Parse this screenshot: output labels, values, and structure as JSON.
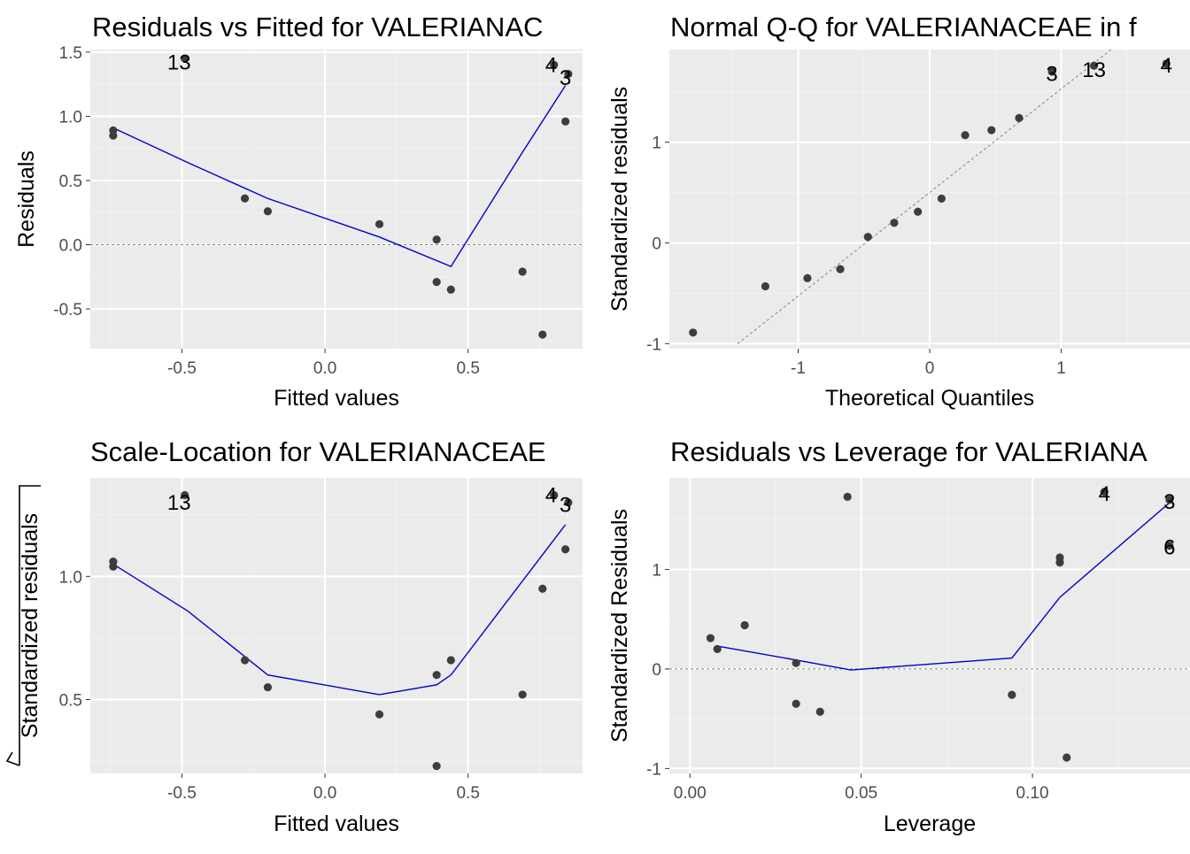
{
  "chart_data": [
    {
      "type": "scatter",
      "title": "Residuals vs Fitted for VALERIANAC",
      "xlabel": "Fitted values",
      "ylabel": "Residuals",
      "xlim": [
        -0.82,
        0.9
      ],
      "ylim": [
        -0.81,
        1.52
      ],
      "xticks": [
        -0.5,
        0.0,
        0.5
      ],
      "xtick_labels": [
        "-0.5",
        "0.0",
        "0.5"
      ],
      "yticks": [
        -0.5,
        0.0,
        0.5,
        1.0,
        1.5
      ],
      "ytick_labels": [
        "-0.5",
        "0.0",
        "0.5",
        "1.0",
        "1.5"
      ],
      "grid": true,
      "hline": 0,
      "points": [
        {
          "x": -0.74,
          "y": 0.89
        },
        {
          "x": -0.74,
          "y": 0.85
        },
        {
          "x": -0.49,
          "y": 1.45
        },
        {
          "x": -0.28,
          "y": 0.36
        },
        {
          "x": -0.2,
          "y": 0.26
        },
        {
          "x": 0.19,
          "y": 0.16
        },
        {
          "x": 0.39,
          "y": 0.04
        },
        {
          "x": 0.39,
          "y": -0.29
        },
        {
          "x": 0.44,
          "y": -0.35
        },
        {
          "x": 0.69,
          "y": -0.21
        },
        {
          "x": 0.76,
          "y": -0.7
        },
        {
          "x": 0.84,
          "y": 0.96
        },
        {
          "x": 0.8,
          "y": 1.4
        },
        {
          "x": 0.85,
          "y": 1.33
        }
      ],
      "smooth": [
        {
          "x": -0.74,
          "y": 0.91
        },
        {
          "x": -0.48,
          "y": 0.64
        },
        {
          "x": -0.2,
          "y": 0.36
        },
        {
          "x": 0.19,
          "y": 0.06
        },
        {
          "x": 0.44,
          "y": -0.17
        },
        {
          "x": 0.69,
          "y": 0.72
        },
        {
          "x": 0.84,
          "y": 1.24
        }
      ],
      "point_labels": [
        {
          "text": "13",
          "x": -0.51,
          "y": 1.42
        },
        {
          "text": "4",
          "x": 0.79,
          "y": 1.4
        },
        {
          "text": "3",
          "x": 0.84,
          "y": 1.3
        }
      ]
    },
    {
      "type": "scatter",
      "title": "Normal Q-Q for VALERIANACEAE in f",
      "xlabel": "Theoretical Quantiles",
      "ylabel": "Standardized residuals",
      "xlim": [
        -1.98,
        1.98
      ],
      "ylim": [
        -1.05,
        1.92
      ],
      "xticks": [
        -1,
        0,
        1
      ],
      "xtick_labels": [
        "-1",
        "0",
        "1"
      ],
      "yticks": [
        -1,
        0,
        1
      ],
      "ytick_labels": [
        "-1",
        "0",
        "1"
      ],
      "grid": true,
      "refline": {
        "x1": -1.46,
        "y1": -1.0,
        "x2": 1.38,
        "y2": 1.92
      },
      "points": [
        {
          "x": -1.8,
          "y": -0.89
        },
        {
          "x": -1.25,
          "y": -0.43
        },
        {
          "x": -0.93,
          "y": -0.35
        },
        {
          "x": -0.68,
          "y": -0.26
        },
        {
          "x": -0.47,
          "y": 0.06
        },
        {
          "x": -0.27,
          "y": 0.2
        },
        {
          "x": -0.09,
          "y": 0.31
        },
        {
          "x": 0.09,
          "y": 0.44
        },
        {
          "x": 0.27,
          "y": 1.07
        },
        {
          "x": 0.47,
          "y": 1.12
        },
        {
          "x": 0.68,
          "y": 1.24
        },
        {
          "x": 0.93,
          "y": 1.7
        },
        {
          "x": 1.25,
          "y": 1.76
        },
        {
          "x": 1.8,
          "y": 1.78
        }
      ],
      "point_labels": [
        {
          "text": "3",
          "x": 0.93,
          "y": 1.68
        },
        {
          "text": "13",
          "x": 1.25,
          "y": 1.72
        },
        {
          "text": "4",
          "x": 1.8,
          "y": 1.76
        }
      ]
    },
    {
      "type": "scatter",
      "title": "Scale-Location for VALERIANACEAE",
      "xlabel": "Fitted values",
      "ylabel": "√Standardized residuals",
      "xlim": [
        -0.82,
        0.9
      ],
      "ylim": [
        0.2,
        1.4
      ],
      "xticks": [
        -0.5,
        0.0,
        0.5
      ],
      "xtick_labels": [
        "-0.5",
        "0.0",
        "0.5"
      ],
      "yticks": [
        0.5,
        1.0
      ],
      "ytick_labels": [
        "0.5",
        "1.0"
      ],
      "grid": true,
      "points": [
        {
          "x": -0.74,
          "y": 1.06
        },
        {
          "x": -0.74,
          "y": 1.04
        },
        {
          "x": -0.49,
          "y": 1.33
        },
        {
          "x": -0.28,
          "y": 0.66
        },
        {
          "x": -0.2,
          "y": 0.55
        },
        {
          "x": 0.19,
          "y": 0.44
        },
        {
          "x": 0.39,
          "y": 0.6
        },
        {
          "x": 0.39,
          "y": 0.23
        },
        {
          "x": 0.44,
          "y": 0.66
        },
        {
          "x": 0.69,
          "y": 0.52
        },
        {
          "x": 0.76,
          "y": 0.95
        },
        {
          "x": 0.84,
          "y": 1.11
        },
        {
          "x": 0.8,
          "y": 1.33
        },
        {
          "x": 0.85,
          "y": 1.3
        }
      ],
      "smooth": [
        {
          "x": -0.74,
          "y": 1.05
        },
        {
          "x": -0.48,
          "y": 0.86
        },
        {
          "x": -0.2,
          "y": 0.6
        },
        {
          "x": 0.19,
          "y": 0.52
        },
        {
          "x": 0.39,
          "y": 0.56
        },
        {
          "x": 0.44,
          "y": 0.6
        },
        {
          "x": 0.84,
          "y": 1.21
        }
      ],
      "point_labels": [
        {
          "text": "13",
          "x": -0.51,
          "y": 1.3
        },
        {
          "text": "4",
          "x": 0.79,
          "y": 1.33
        },
        {
          "text": "3",
          "x": 0.84,
          "y": 1.29
        }
      ]
    },
    {
      "type": "scatter",
      "title": "Residuals vs Leverage for VALERIANA",
      "xlabel": "Leverage",
      "ylabel": "Standardized Residuals",
      "xlim": [
        -0.006,
        0.146
      ],
      "ylim": [
        -1.05,
        1.92
      ],
      "xticks": [
        0.0,
        0.05,
        0.1
      ],
      "xtick_labels": [
        "0.00",
        "0.05",
        "0.10"
      ],
      "yticks": [
        -1,
        0,
        1
      ],
      "ytick_labels": [
        "-1",
        "0",
        "1"
      ],
      "grid": true,
      "hline": 0,
      "points": [
        {
          "x": 0.006,
          "y": 0.31
        },
        {
          "x": 0.008,
          "y": 0.2
        },
        {
          "x": 0.016,
          "y": 0.44
        },
        {
          "x": 0.031,
          "y": 0.06
        },
        {
          "x": 0.031,
          "y": -0.35
        },
        {
          "x": 0.038,
          "y": -0.43
        },
        {
          "x": 0.046,
          "y": 1.73
        },
        {
          "x": 0.094,
          "y": -0.26
        },
        {
          "x": 0.108,
          "y": 1.12
        },
        {
          "x": 0.108,
          "y": 1.07
        },
        {
          "x": 0.11,
          "y": -0.89
        },
        {
          "x": 0.121,
          "y": 1.78
        },
        {
          "x": 0.14,
          "y": 1.7
        },
        {
          "x": 0.14,
          "y": 1.24
        }
      ],
      "smooth": [
        {
          "x": 0.008,
          "y": 0.23
        },
        {
          "x": 0.031,
          "y": 0.09
        },
        {
          "x": 0.047,
          "y": -0.01
        },
        {
          "x": 0.094,
          "y": 0.11
        },
        {
          "x": 0.108,
          "y": 0.72
        },
        {
          "x": 0.14,
          "y": 1.67
        }
      ],
      "point_labels": [
        {
          "text": "4",
          "x": 0.121,
          "y": 1.76
        },
        {
          "text": "3",
          "x": 0.14,
          "y": 1.68
        },
        {
          "text": "6",
          "x": 0.14,
          "y": 1.22
        }
      ]
    }
  ],
  "colors": {
    "panel": "#ebebeb",
    "grid_major": "#ffffff",
    "grid_minor": "#f3f3f3",
    "point": "#3d3d3d",
    "smooth": "#0000cc",
    "refline": "#7f7f7f",
    "text": "#000000",
    "tick_text": "#4d4d4d"
  }
}
